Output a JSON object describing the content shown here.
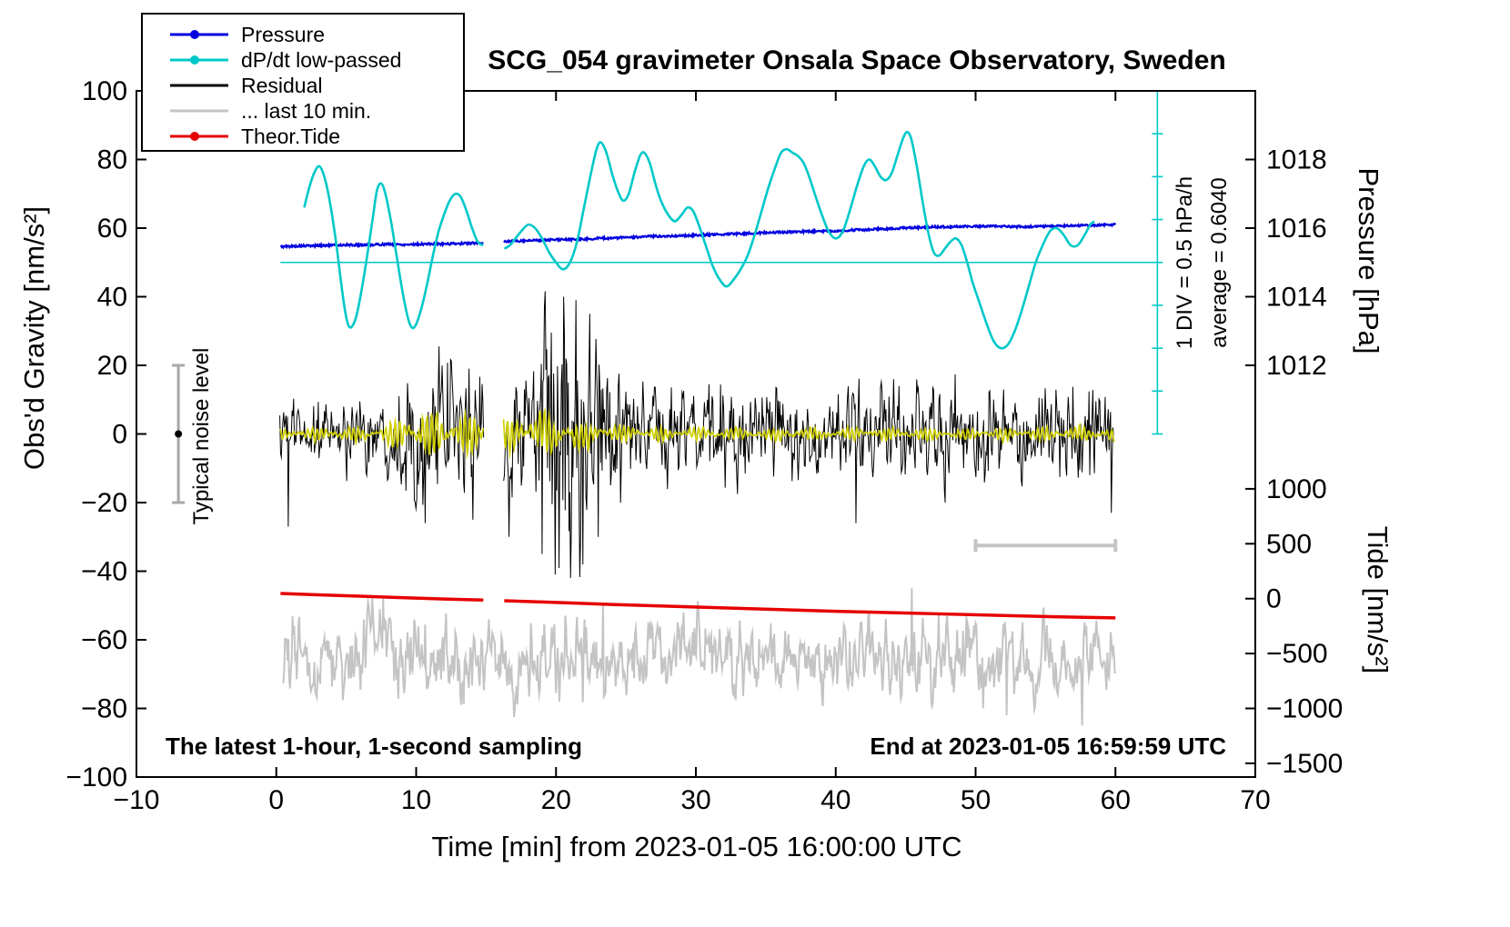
{
  "chart_data": {
    "type": "line",
    "title": "SCG_054 gravimeter Onsala Space Observatory, Sweden",
    "xlabel": "Time [min] from 2023-01-05 16:00:00 UTC",
    "ylabel": "Obs'd Gravity [nm/s²]",
    "y2label_pressure": "Pressure [hPa]",
    "y2label_tide": "Tide [nm/s²]",
    "footnote_left": "The latest 1-hour, 1-second sampling",
    "footnote_right": "End at 2023-01-05 16:59:59 UTC",
    "xlim": [
      -10,
      70
    ],
    "ylim": [
      -100,
      100
    ],
    "xticks": [
      -10,
      0,
      10,
      20,
      30,
      40,
      50,
      60,
      70
    ],
    "yticks": [
      -100,
      -80,
      -60,
      -40,
      -20,
      0,
      20,
      40,
      60,
      80,
      100
    ],
    "pressure_axis": {
      "ticks": [
        1012,
        1014,
        1016,
        1018
      ],
      "map": {
        "ref_hpa": 1015,
        "ref_g": 50,
        "g_per_hpa": 10
      }
    },
    "tide_axis": {
      "ticks": [
        1000,
        500,
        0,
        -500,
        -1000,
        -1500
      ],
      "map": {
        "ref_g": -48,
        "g_per_unit": 0.032
      }
    },
    "gap": [
      14.85,
      16.25
    ],
    "legend": [
      {
        "label": "Pressure",
        "color": "#0000e0",
        "style": "line-dot"
      },
      {
        "label": "dP/dt low-passed",
        "color": "#00c8c8",
        "style": "line-dot"
      },
      {
        "label": "Residual",
        "color": "#000000",
        "style": "line"
      },
      {
        "label": "... last 10 min.",
        "color": "#c4c4c4",
        "style": "line"
      },
      {
        "label": "Theor.Tide",
        "color": "#e60000",
        "style": "line-dot"
      }
    ],
    "annotations": {
      "div_label": "1 DIV = 0.5 hPa/h",
      "average_label": "average = 0.6040",
      "noise_label": "Typical noise level"
    },
    "refline": {
      "color": "#00c8c8",
      "y": 50,
      "x_from": 0.3,
      "x_to": 63.0
    },
    "div_axis": {
      "x": 63.0,
      "g_top": 100,
      "g_bottom": 0,
      "tick_step_g": 12.5,
      "color": "#00c8c8"
    },
    "noise_bar": {
      "x": -7,
      "from": -20,
      "to": 20,
      "dot_y": 0,
      "color": "#a8a8a8",
      "dot_color": "#000000"
    },
    "scale_bar": {
      "y": -32.5,
      "x_from": 50,
      "x_to": 60,
      "color": "#c4c4c4"
    },
    "series": {
      "pressure": {
        "name": "Pressure",
        "color": "#0000e0",
        "width": 2.3,
        "jitter": 0.3,
        "points": [
          [
            0.3,
            54.6
          ],
          [
            1,
            54.7
          ],
          [
            2,
            54.8
          ],
          [
            3,
            54.9
          ],
          [
            4,
            55
          ],
          [
            5,
            55.1
          ],
          [
            6,
            55.1
          ],
          [
            7,
            55.2
          ],
          [
            8,
            55.3
          ],
          [
            9,
            55.2
          ],
          [
            10,
            55.3
          ],
          [
            11,
            55.4
          ],
          [
            12,
            55.4
          ],
          [
            13,
            55.5
          ],
          [
            14,
            55.6
          ],
          [
            14.8,
            55.7
          ],
          [
            16.3,
            56.1
          ],
          [
            17,
            56.2
          ],
          [
            18,
            56.4
          ],
          [
            19,
            56.5
          ],
          [
            20,
            56.6
          ],
          [
            21,
            56.7
          ],
          [
            22,
            56.8
          ],
          [
            23,
            57
          ],
          [
            24,
            57.1
          ],
          [
            25,
            57.3
          ],
          [
            26,
            57.4
          ],
          [
            27,
            57.6
          ],
          [
            28,
            57.7
          ],
          [
            29,
            57.8
          ],
          [
            30,
            57.9
          ],
          [
            31,
            58.1
          ],
          [
            32,
            58.2
          ],
          [
            33,
            58.4
          ],
          [
            34,
            58.5
          ],
          [
            35,
            58.7
          ],
          [
            36,
            58.8
          ],
          [
            37,
            58.9
          ],
          [
            38,
            59
          ],
          [
            39,
            59.1
          ],
          [
            40,
            59.2
          ],
          [
            41,
            59.4
          ],
          [
            42,
            59.5
          ],
          [
            43,
            59.7
          ],
          [
            44,
            59.9
          ],
          [
            45,
            60.1
          ],
          [
            46,
            60.2
          ],
          [
            47,
            60.3
          ],
          [
            48,
            60.4
          ],
          [
            49,
            60.5
          ],
          [
            50,
            60.5
          ],
          [
            51,
            60.6
          ],
          [
            52,
            60.5
          ],
          [
            53,
            60.4
          ],
          [
            54,
            60.4
          ],
          [
            55,
            60.5
          ],
          [
            56,
            60.6
          ],
          [
            57,
            60.7
          ],
          [
            58,
            60.8
          ],
          [
            59,
            60.9
          ],
          [
            60,
            61
          ]
        ]
      },
      "dpdt": {
        "name": "dP/dt low-passed",
        "color": "#00c8c8",
        "width": 2.6,
        "points": [
          [
            2,
            66
          ],
          [
            2.3,
            71
          ],
          [
            2.7,
            76
          ],
          [
            3.1,
            78
          ],
          [
            3.5,
            74
          ],
          [
            3.9,
            66
          ],
          [
            4.3,
            55
          ],
          [
            4.7,
            42
          ],
          [
            5,
            34
          ],
          [
            5.3,
            31
          ],
          [
            5.7,
            34
          ],
          [
            6.1,
            42
          ],
          [
            6.5,
            52
          ],
          [
            6.9,
            63
          ],
          [
            7.2,
            71
          ],
          [
            7.5,
            73
          ],
          [
            7.8,
            70
          ],
          [
            8.2,
            62
          ],
          [
            8.6,
            52
          ],
          [
            9,
            42
          ],
          [
            9.4,
            34
          ],
          [
            9.7,
            31
          ],
          [
            10,
            32
          ],
          [
            10.4,
            37
          ],
          [
            10.8,
            44
          ],
          [
            11.2,
            52
          ],
          [
            11.6,
            59
          ],
          [
            12,
            64
          ],
          [
            12.4,
            68
          ],
          [
            12.8,
            70
          ],
          [
            13.2,
            69
          ],
          [
            13.6,
            65
          ],
          [
            14,
            60
          ],
          [
            14.4,
            56
          ],
          [
            14.8,
            55
          ],
          [
            16.3,
            54
          ],
          [
            16.7,
            55
          ],
          [
            17.1,
            57
          ],
          [
            17.5,
            59
          ],
          [
            18,
            61
          ],
          [
            18.5,
            60
          ],
          [
            19,
            57
          ],
          [
            19.5,
            53
          ],
          [
            20,
            50
          ],
          [
            20.5,
            48
          ],
          [
            21,
            50
          ],
          [
            21.5,
            56
          ],
          [
            22,
            66
          ],
          [
            22.5,
            76
          ],
          [
            22.9,
            83
          ],
          [
            23.2,
            85
          ],
          [
            23.6,
            82
          ],
          [
            24,
            76
          ],
          [
            24.4,
            71
          ],
          [
            24.8,
            68
          ],
          [
            25.2,
            70
          ],
          [
            25.6,
            76
          ],
          [
            26,
            81
          ],
          [
            26.3,
            82
          ],
          [
            26.7,
            79
          ],
          [
            27.1,
            73
          ],
          [
            27.5,
            68
          ],
          [
            28,
            64
          ],
          [
            28.5,
            62
          ],
          [
            29,
            64
          ],
          [
            29.4,
            66
          ],
          [
            29.8,
            65
          ],
          [
            30.2,
            61
          ],
          [
            30.7,
            55
          ],
          [
            31.2,
            49
          ],
          [
            31.7,
            45
          ],
          [
            32.2,
            43
          ],
          [
            32.7,
            45
          ],
          [
            33.2,
            48
          ],
          [
            33.7,
            52
          ],
          [
            34.2,
            58
          ],
          [
            34.7,
            65
          ],
          [
            35.2,
            72
          ],
          [
            35.7,
            78
          ],
          [
            36.1,
            82
          ],
          [
            36.5,
            83
          ],
          [
            36.9,
            82
          ],
          [
            37.3,
            81
          ],
          [
            37.7,
            79
          ],
          [
            38.1,
            75
          ],
          [
            38.5,
            70
          ],
          [
            39,
            64
          ],
          [
            39.5,
            59
          ],
          [
            40,
            57
          ],
          [
            40.5,
            59
          ],
          [
            41,
            65
          ],
          [
            41.5,
            72
          ],
          [
            42,
            78
          ],
          [
            42.4,
            80
          ],
          [
            42.8,
            78
          ],
          [
            43.2,
            75
          ],
          [
            43.6,
            74
          ],
          [
            44,
            76
          ],
          [
            44.4,
            81
          ],
          [
            44.8,
            86
          ],
          [
            45.1,
            88
          ],
          [
            45.4,
            86
          ],
          [
            45.8,
            78
          ],
          [
            46.2,
            68
          ],
          [
            46.6,
            59
          ],
          [
            47,
            53
          ],
          [
            47.4,
            52
          ],
          [
            47.8,
            54
          ],
          [
            48.2,
            56
          ],
          [
            48.6,
            57
          ],
          [
            49,
            55
          ],
          [
            49.4,
            50
          ],
          [
            49.8,
            44
          ],
          [
            50.3,
            38
          ],
          [
            50.8,
            32
          ],
          [
            51.3,
            27
          ],
          [
            51.8,
            25
          ],
          [
            52.3,
            26
          ],
          [
            52.8,
            30
          ],
          [
            53.3,
            36
          ],
          [
            53.8,
            43
          ],
          [
            54.3,
            50
          ],
          [
            54.8,
            55
          ],
          [
            55.3,
            59
          ],
          [
            55.8,
            60
          ],
          [
            56.3,
            58
          ],
          [
            56.8,
            55
          ],
          [
            57.3,
            55
          ],
          [
            57.8,
            58
          ],
          [
            58.2,
            61
          ],
          [
            58.5,
            62
          ]
        ]
      },
      "residual": {
        "name": "Residual",
        "color": "#000000",
        "width": 1,
        "x_from": 0.25,
        "x_to": 59.9,
        "envelope": [
          [
            0.3,
            6
          ],
          [
            4,
            6
          ],
          [
            8,
            6.5
          ],
          [
            8.8,
            9
          ],
          [
            9.5,
            11
          ],
          [
            10.5,
            12
          ],
          [
            11.5,
            11
          ],
          [
            12.5,
            12
          ],
          [
            13.5,
            11
          ],
          [
            14.8,
            10
          ],
          [
            16.3,
            11
          ],
          [
            17.5,
            12
          ],
          [
            18.5,
            15
          ],
          [
            19.3,
            19
          ],
          [
            20,
            21
          ],
          [
            20.7,
            22
          ],
          [
            21.3,
            21
          ],
          [
            22,
            19
          ],
          [
            22.7,
            15
          ],
          [
            23.5,
            12
          ],
          [
            24.5,
            10
          ],
          [
            26,
            9
          ],
          [
            28,
            8.5
          ],
          [
            30,
            8
          ],
          [
            36,
            8
          ],
          [
            42,
            8
          ],
          [
            48,
            8
          ],
          [
            54,
            8
          ],
          [
            60,
            8
          ]
        ],
        "spikes": [
          [
            0.85,
            -27
          ],
          [
            10.6,
            -26
          ],
          [
            14,
            -25
          ],
          [
            16.6,
            -30
          ],
          [
            19,
            -35
          ],
          [
            19.9,
            -41
          ],
          [
            20.5,
            40
          ],
          [
            21,
            -42
          ],
          [
            21.4,
            39
          ],
          [
            21.9,
            -38
          ],
          [
            22.4,
            35
          ],
          [
            23,
            -30
          ],
          [
            41.4,
            -26
          ],
          [
            47.8,
            -20
          ],
          [
            59.7,
            -23
          ]
        ]
      },
      "residual_smooth": {
        "name": "Residual low-passed",
        "color": "#cfcf00",
        "width": 1.7,
        "x_from": 0.25,
        "x_to": 59.9,
        "envelope": [
          [
            0.3,
            2
          ],
          [
            7.5,
            2.5
          ],
          [
            8.5,
            5
          ],
          [
            9.2,
            7
          ],
          [
            13,
            7
          ],
          [
            14.8,
            5
          ],
          [
            16.3,
            5
          ],
          [
            17.5,
            6
          ],
          [
            19,
            6.5
          ],
          [
            21,
            6
          ],
          [
            22.5,
            4
          ],
          [
            24,
            3
          ],
          [
            26,
            2.5
          ],
          [
            30,
            2
          ],
          [
            40,
            2
          ],
          [
            50,
            2
          ],
          [
            60,
            2.5
          ]
        ]
      },
      "last10": {
        "name": "... last 10 min.",
        "color": "#c4c4c4",
        "width": 2,
        "baseline": -65,
        "scale": 4.6,
        "x_from": 0.5,
        "x_to": 60,
        "spikes": [
          [
            7.6,
            -48
          ],
          [
            23.3,
            -50
          ],
          [
            45.4,
            -45
          ],
          [
            50.5,
            -80
          ],
          [
            52.2,
            -82
          ],
          [
            57.6,
            -85
          ]
        ]
      },
      "tide": {
        "name": "Theor.Tide",
        "color": "#e60000",
        "width": 3.5,
        "points": [
          [
            0.3,
            -46.5
          ],
          [
            3,
            -46.9
          ],
          [
            6,
            -47.3
          ],
          [
            9,
            -47.7
          ],
          [
            12,
            -48.1
          ],
          [
            14.8,
            -48.4
          ],
          [
            16.3,
            -48.6
          ],
          [
            20,
            -49.1
          ],
          [
            24,
            -49.7
          ],
          [
            28,
            -50.2
          ],
          [
            32,
            -50.7
          ],
          [
            36,
            -51.2
          ],
          [
            40,
            -51.7
          ],
          [
            44,
            -52.1
          ],
          [
            48,
            -52.5
          ],
          [
            52,
            -52.9
          ],
          [
            56,
            -53.3
          ],
          [
            60,
            -53.6
          ]
        ]
      }
    }
  }
}
